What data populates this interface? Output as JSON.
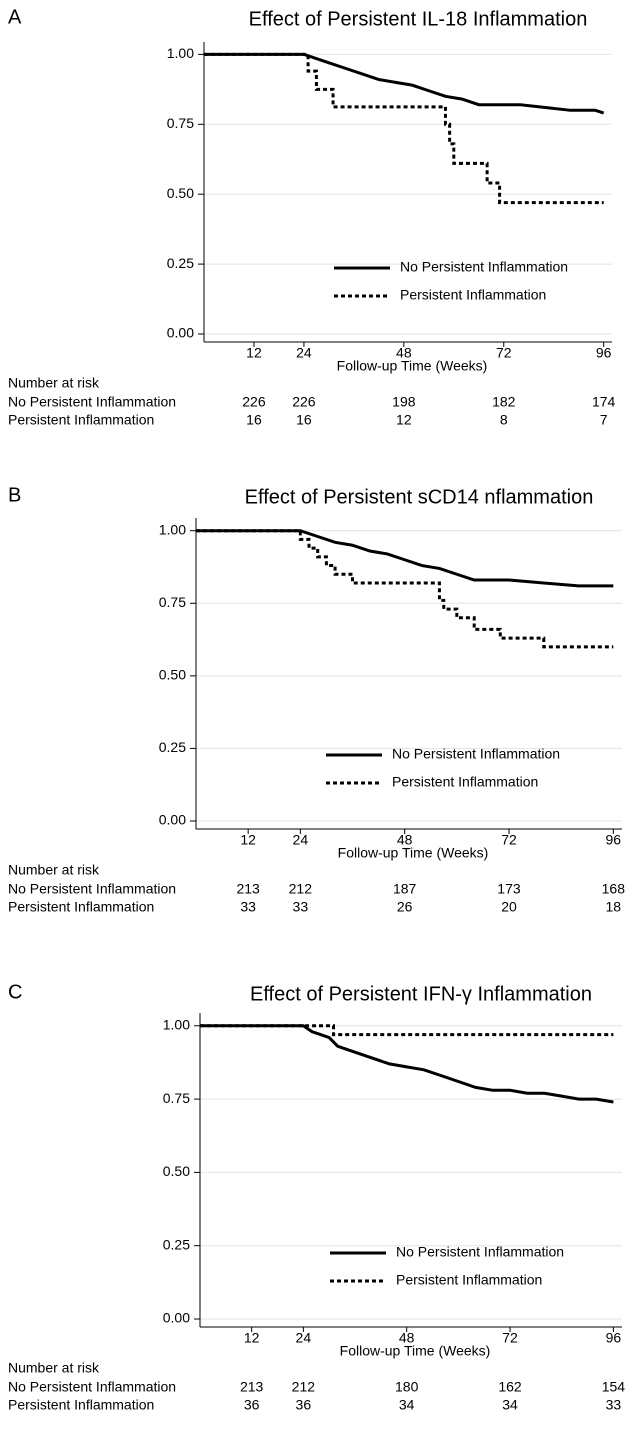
{
  "chart_data": [
    {
      "type": "line",
      "panel": "A",
      "title": "Effect of Persistent IL-18 Inflammation",
      "x_label": "Follow-up Time (Weeks)",
      "xlim": [
        0,
        98
      ],
      "xticks": [
        12,
        24,
        48,
        72,
        96
      ],
      "ylim": [
        0,
        1.03
      ],
      "yticks": [
        {
          "value": 0,
          "label": "0.00"
        },
        {
          "value": 0.25,
          "label": "0.25"
        },
        {
          "value": 0.5,
          "label": "0.50"
        },
        {
          "value": 0.75,
          "label": "0.75"
        },
        {
          "value": 1,
          "label": "1.00"
        }
      ],
      "grid": true,
      "legend": "lower-right",
      "series": [
        {
          "name": "No Persistent Inflammation",
          "color": "#000000",
          "dash": false,
          "x": [
            0,
            24,
            26,
            30,
            34,
            38,
            42,
            46,
            50,
            54,
            58,
            62,
            66,
            70,
            76,
            82,
            88,
            94,
            96
          ],
          "values": [
            1,
            1,
            0.99,
            0.97,
            0.95,
            0.93,
            0.91,
            0.9,
            0.89,
            0.87,
            0.85,
            0.84,
            0.82,
            0.82,
            0.82,
            0.81,
            0.8,
            0.8,
            0.79
          ]
        },
        {
          "name": "Persistent Inflammation",
          "color": "#000000",
          "dash": true,
          "x": [
            0,
            25,
            25,
            27,
            27,
            31,
            31,
            58,
            58,
            59,
            59,
            60,
            60,
            68,
            68,
            71,
            71,
            96
          ],
          "values": [
            1,
            1,
            0.94,
            0.94,
            0.875,
            0.875,
            0.8125,
            0.8125,
            0.75,
            0.75,
            0.68,
            0.68,
            0.61,
            0.61,
            0.54,
            0.54,
            0.47,
            0.47
          ]
        }
      ],
      "risk_table": {
        "title": "Number at risk",
        "rows": [
          {
            "name": "No Persistent Inflammation",
            "values": [
              226,
              226,
              198,
              182,
              174
            ]
          },
          {
            "name": "Persistent Inflammation",
            "values": [
              16,
              16,
              12,
              8,
              7
            ]
          }
        ]
      }
    },
    {
      "type": "line",
      "panel": "B",
      "title": "Effect of Persistent sCD14 nflammation",
      "x_label": "Follow-up Time (Weeks)",
      "xlim": [
        0,
        98
      ],
      "xticks": [
        12,
        24,
        48,
        72,
        96
      ],
      "ylim": [
        0,
        1.03
      ],
      "yticks": [
        {
          "value": 0,
          "label": "0.00"
        },
        {
          "value": 0.25,
          "label": "0.25"
        },
        {
          "value": 0.5,
          "label": "0.50"
        },
        {
          "value": 0.75,
          "label": "0.75"
        },
        {
          "value": 1,
          "label": "1.00"
        }
      ],
      "grid": true,
      "legend": "lower-right",
      "series": [
        {
          "name": "No Persistent Inflammation",
          "color": "#000000",
          "dash": false,
          "x": [
            0,
            24,
            28,
            32,
            36,
            40,
            44,
            48,
            52,
            56,
            60,
            64,
            68,
            72,
            80,
            88,
            96
          ],
          "values": [
            1,
            1,
            0.98,
            0.96,
            0.95,
            0.93,
            0.92,
            0.9,
            0.88,
            0.87,
            0.85,
            0.83,
            0.83,
            0.83,
            0.82,
            0.81,
            0.81
          ]
        },
        {
          "name": "Persistent Inflammation",
          "color": "#000000",
          "dash": true,
          "x": [
            0,
            24,
            24,
            26,
            26,
            28,
            28,
            30,
            30,
            32,
            32,
            36,
            36,
            56,
            56,
            57,
            57,
            60,
            60,
            64,
            64,
            70,
            70,
            80,
            80,
            96
          ],
          "values": [
            1,
            1,
            0.97,
            0.97,
            0.94,
            0.94,
            0.91,
            0.91,
            0.88,
            0.88,
            0.85,
            0.85,
            0.82,
            0.82,
            0.76,
            0.76,
            0.73,
            0.73,
            0.7,
            0.7,
            0.66,
            0.66,
            0.63,
            0.63,
            0.6,
            0.6
          ]
        }
      ],
      "risk_table": {
        "title": "Number at risk",
        "rows": [
          {
            "name": "No Persistent Inflammation",
            "values": [
              213,
              212,
              187,
              173,
              168
            ]
          },
          {
            "name": "Persistent Inflammation",
            "values": [
              33,
              33,
              26,
              20,
              18
            ]
          }
        ]
      }
    },
    {
      "type": "line",
      "panel": "C",
      "title": "Effect of Persistent IFN-γ Inflammation",
      "x_label": "Follow-up Time (Weeks)",
      "xlim": [
        0,
        98
      ],
      "xticks": [
        12,
        24,
        48,
        72,
        96
      ],
      "ylim": [
        0,
        1.03
      ],
      "yticks": [
        {
          "value": 0,
          "label": "0.00"
        },
        {
          "value": 0.25,
          "label": "0.25"
        },
        {
          "value": 0.5,
          "label": "0.50"
        },
        {
          "value": 0.75,
          "label": "0.75"
        },
        {
          "value": 1,
          "label": "1.00"
        }
      ],
      "grid": true,
      "legend": "lower-right",
      "series": [
        {
          "name": "No Persistent Inflammation",
          "color": "#000000",
          "dash": false,
          "x": [
            0,
            24,
            26,
            28,
            30,
            32,
            36,
            40,
            44,
            48,
            52,
            56,
            60,
            64,
            68,
            72,
            76,
            80,
            84,
            88,
            92,
            96
          ],
          "values": [
            1,
            1,
            0.98,
            0.97,
            0.96,
            0.93,
            0.91,
            0.89,
            0.87,
            0.86,
            0.85,
            0.83,
            0.81,
            0.79,
            0.78,
            0.78,
            0.77,
            0.77,
            0.76,
            0.75,
            0.75,
            0.74
          ]
        },
        {
          "name": "Persistent Inflammation",
          "color": "#000000",
          "dash": true,
          "x": [
            0,
            31,
            31,
            96
          ],
          "values": [
            1,
            1,
            0.97,
            0.97
          ]
        }
      ],
      "risk_table": {
        "title": "Number at risk",
        "rows": [
          {
            "name": "No Persistent Inflammation",
            "values": [
              213,
              212,
              180,
              162,
              154
            ]
          },
          {
            "name": "Persistent Inflammation",
            "values": [
              36,
              36,
              34,
              34,
              33
            ]
          }
        ]
      }
    }
  ]
}
